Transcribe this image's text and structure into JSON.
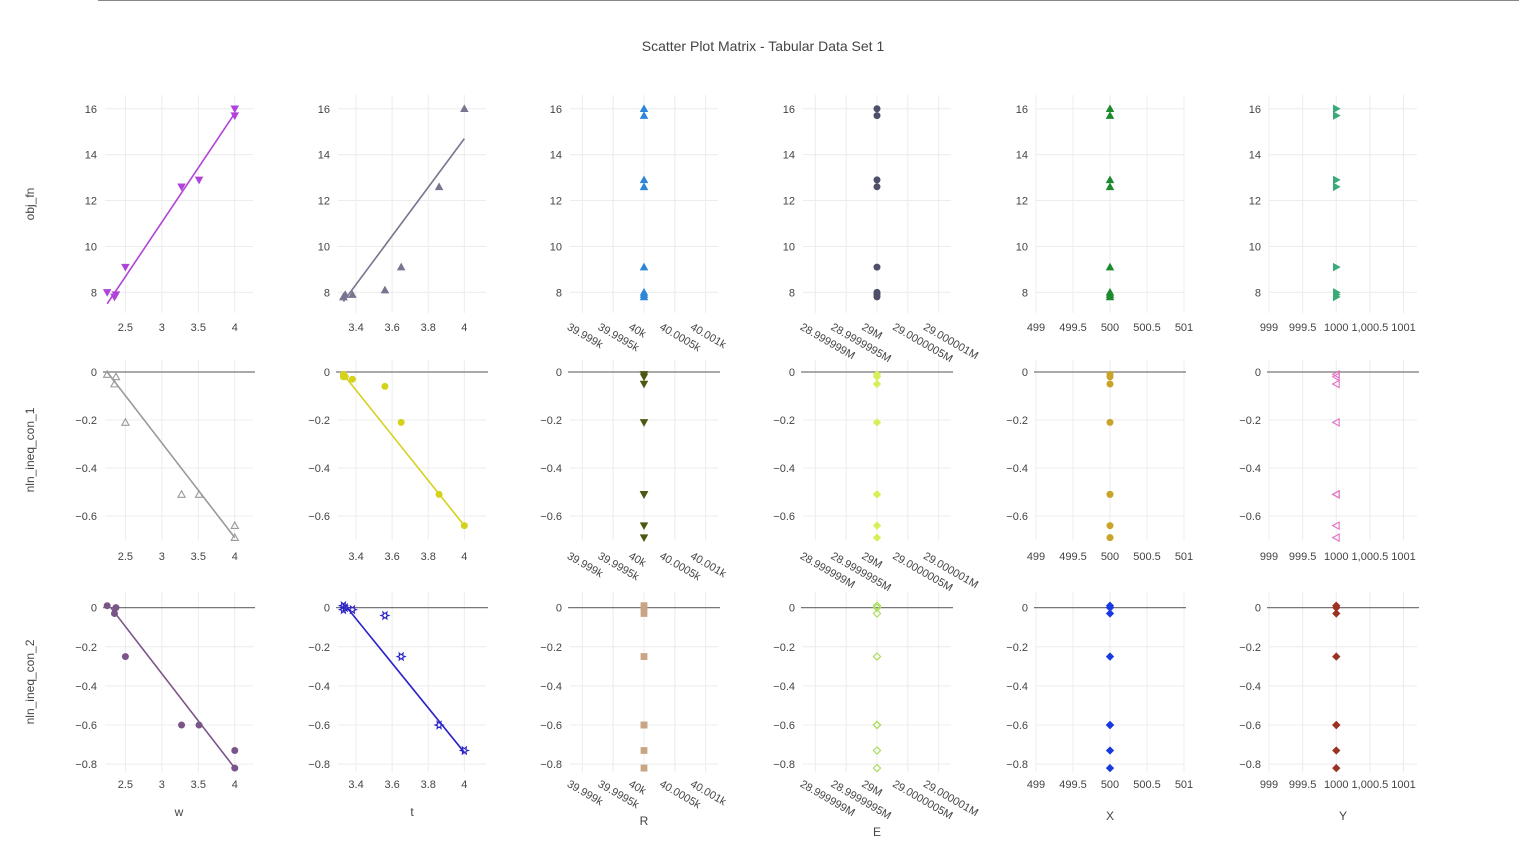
{
  "chart_data": {
    "type": "scatter",
    "title": "Scatter Plot Matrix - Tabular Data Set 1",
    "columns": [
      {
        "key": "w",
        "label": "w",
        "xlim": [
          2.22,
          4.25
        ],
        "ticks": [
          2.5,
          3,
          3.5,
          4
        ],
        "tick_labels": [
          "2.5",
          "3",
          "3.5",
          "4"
        ],
        "tick_angle": 0
      },
      {
        "key": "t",
        "label": "t",
        "xlim": [
          3.3,
          4.12
        ],
        "ticks": [
          3.4,
          3.6,
          3.8,
          4
        ],
        "tick_labels": [
          "3.4",
          "3.6",
          "3.8",
          "4"
        ],
        "tick_angle": 0
      },
      {
        "key": "R",
        "label": "R",
        "xlim": [
          39998.8,
          40001.2
        ],
        "ticks": [
          39999,
          39999.5,
          40000,
          40000.5,
          40001
        ],
        "tick_labels": [
          "39.999k",
          "39.9995k",
          "40k",
          "40.0005k",
          "40.001k"
        ],
        "tick_angle": 30
      },
      {
        "key": "E",
        "label": "E",
        "xlim": [
          28999998.8,
          29000001.2
        ],
        "ticks": [
          28999999,
          28999999.5,
          29000000,
          29000000.5,
          29000001
        ],
        "tick_labels": [
          "28.999999M",
          "28.9999995M",
          "29M",
          "29.0000005M",
          "29.000001M"
        ],
        "tick_angle": 30
      },
      {
        "key": "X",
        "label": "X",
        "xlim": [
          499,
          501
        ],
        "ticks": [
          499,
          499.5,
          500,
          500.5,
          501
        ],
        "tick_labels": [
          "499",
          "499.5",
          "500",
          "500.5",
          "501"
        ],
        "tick_angle": 0
      },
      {
        "key": "Y",
        "label": "Y",
        "xlim": [
          999,
          1001.2
        ],
        "ticks": [
          999,
          999.5,
          1000,
          1000.5,
          1001
        ],
        "tick_labels": [
          "999",
          "999.5",
          "1000",
          "1,000.5",
          "1001"
        ],
        "tick_angle": 0
      }
    ],
    "rows": [
      {
        "key": "obj_fn",
        "label": "obj_fn",
        "ylim": [
          7.1,
          16.6
        ],
        "ticks": [
          8,
          10,
          12,
          14,
          16
        ],
        "tick_labels": [
          "8",
          "10",
          "12",
          "14",
          "16"
        ],
        "zero_line": false
      },
      {
        "key": "nln_ineq_con_1",
        "label": "nln_ineq_con_1",
        "ylim": [
          -0.7,
          0.05
        ],
        "ticks": [
          0,
          -0.2,
          -0.4,
          -0.6
        ],
        "tick_labels": [
          "0",
          "−0.2",
          "−0.4",
          "−0.6"
        ],
        "zero_line": true
      },
      {
        "key": "nln_ineq_con_2",
        "label": "nln_ineq_con_2",
        "ylim": [
          -0.84,
          0.08
        ],
        "ticks": [
          0,
          -0.2,
          -0.4,
          -0.6,
          -0.8
        ],
        "tick_labels": [
          "0",
          "−0.2",
          "−0.4",
          "−0.6",
          "−0.8"
        ],
        "zero_line": true
      }
    ],
    "data": {
      "w": [
        2.25,
        2.35,
        2.37,
        2.5,
        3.27,
        3.51,
        4.0,
        4.0
      ],
      "t": [
        3.33,
        3.33,
        3.34,
        3.38,
        3.56,
        3.65,
        3.86,
        4.0
      ],
      "R": [
        40000,
        40000,
        40000,
        40000,
        40000,
        40000,
        40000,
        40000
      ],
      "E": [
        29000000,
        29000000,
        29000000,
        29000000,
        29000000,
        29000000,
        29000000,
        29000000
      ],
      "X": [
        500,
        500,
        500,
        500,
        500,
        500,
        500,
        500
      ],
      "Y": [
        1000,
        1000,
        1000,
        1000,
        1000,
        1000,
        1000,
        1000
      ],
      "obj_fn": [
        8.0,
        7.8,
        7.9,
        9.1,
        12.6,
        12.9,
        16.0,
        15.7
      ],
      "nln_ineq_con_1": [
        -0.01,
        -0.05,
        -0.02,
        -0.21,
        -0.51,
        -0.51,
        -0.64,
        -0.69
      ],
      "nln_ineq_con_2": [
        0.01,
        -0.03,
        0.0,
        -0.25,
        -0.6,
        -0.6,
        -0.73,
        -0.82
      ],
      "t_obj_fn": [
        7.8,
        7.8,
        7.9,
        7.9,
        8.1,
        9.1,
        12.6,
        16.0
      ],
      "t_nln1": [
        -0.01,
        -0.02,
        -0.02,
        -0.03,
        -0.06,
        -0.21,
        -0.51,
        -0.64
      ],
      "t_nln2": [
        0.01,
        -0.01,
        0.0,
        -0.01,
        -0.04,
        -0.25,
        -0.6,
        -0.73
      ]
    },
    "fits": [
      {
        "row": 0,
        "col": 0,
        "x": [
          2.25,
          4.0
        ],
        "y": [
          7.5,
          15.8
        ]
      },
      {
        "row": 0,
        "col": 1,
        "x": [
          3.33,
          4.0
        ],
        "y": [
          7.6,
          14.7
        ]
      },
      {
        "row": 1,
        "col": 0,
        "x": [
          2.25,
          4.0
        ],
        "y": [
          0.0,
          -0.69
        ]
      },
      {
        "row": 1,
        "col": 1,
        "x": [
          3.33,
          4.0
        ],
        "y": [
          -0.01,
          -0.64
        ]
      },
      {
        "row": 2,
        "col": 0,
        "x": [
          2.3,
          4.0
        ],
        "y": [
          0.0,
          -0.82
        ]
      },
      {
        "row": 2,
        "col": 1,
        "x": [
          3.35,
          4.0
        ],
        "y": [
          0.0,
          -0.74
        ]
      }
    ],
    "styles": [
      [
        {
          "color": "#b044d8",
          "symbol": "tri-down",
          "fill": true
        },
        {
          "color": "#7a7490",
          "symbol": "tri-up",
          "fill": true
        },
        {
          "color": "#2e86d8",
          "symbol": "tri-up",
          "fill": true
        },
        {
          "color": "#4f4f6a",
          "symbol": "circle",
          "fill": true
        },
        {
          "color": "#1d8a2e",
          "symbol": "tri-up",
          "fill": true
        },
        {
          "color": "#3aaa78",
          "symbol": "tri-right",
          "fill": true
        }
      ],
      [
        {
          "color": "#9a9a9a",
          "symbol": "tri-up",
          "fill": false
        },
        {
          "color": "#d4d21a",
          "symbol": "circle",
          "fill": true
        },
        {
          "color": "#4b5a12",
          "symbol": "tri-down",
          "fill": true
        },
        {
          "color": "#d8ef5a",
          "symbol": "diamond",
          "fill": true
        },
        {
          "color": "#c9a428",
          "symbol": "circle",
          "fill": true
        },
        {
          "color": "#e36ec2",
          "symbol": "tri-left",
          "fill": false
        }
      ],
      [
        {
          "color": "#7a5688",
          "symbol": "circle",
          "fill": true
        },
        {
          "color": "#2b22c8",
          "symbol": "star",
          "fill": false
        },
        {
          "color": "#c9a585",
          "symbol": "square-x",
          "fill": true
        },
        {
          "color": "#a5dd55",
          "symbol": "diamond",
          "fill": false
        },
        {
          "color": "#1a3ae0",
          "symbol": "diamond",
          "fill": true
        },
        {
          "color": "#9a3322",
          "symbol": "diamond",
          "fill": true
        }
      ]
    ],
    "fit_colors": [
      [
        "#b044d8",
        "#7a7490"
      ],
      [
        "#9a9a9a",
        "#d4d21a"
      ],
      [
        "#7a5688",
        "#2b22c8"
      ]
    ],
    "grid": true,
    "legend": "none"
  }
}
